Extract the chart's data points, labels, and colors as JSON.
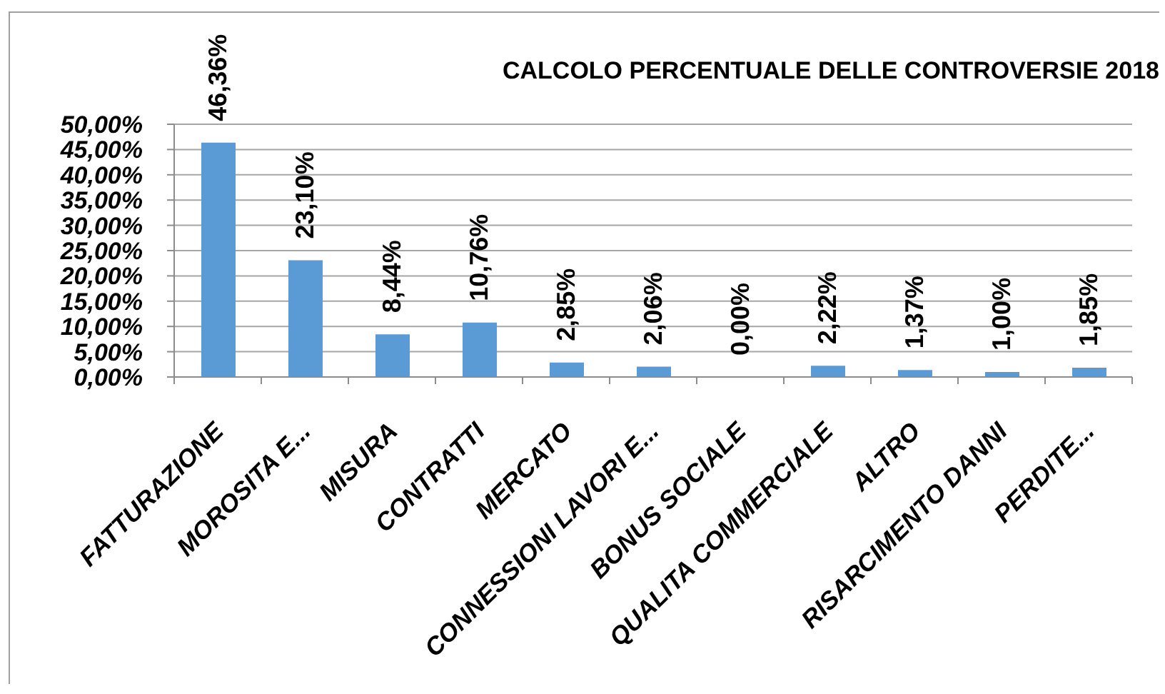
{
  "chart_data": {
    "type": "bar",
    "title": "CALCOLO PERCENTUALE DELLE CONTROVERSIE 2018",
    "categories": [
      "FATTURAZIONE",
      "MOROSITA E...",
      "MISURA",
      "CONTRATTI",
      "MERCATO",
      "CONNESSIONI LAVORI E...",
      "BONUS SOCIALE",
      "QUALITA COMMERCIALE",
      "ALTRO",
      "RISARCIMENTO DANNI",
      "PERDITE..."
    ],
    "values": [
      46.36,
      23.1,
      8.44,
      10.76,
      2.85,
      2.06,
      0.0,
      2.22,
      1.37,
      1.0,
      1.85
    ],
    "color": "#5b9bd5",
    "value_labels": [
      "46,36%",
      "23,10%",
      "8,44%",
      "10,76%",
      "2,85%",
      "2,06%",
      "0,00%",
      "2,22%",
      "1,37%",
      "1,00%",
      "1,85%"
    ],
    "ylim": [
      0,
      50
    ],
    "yticks": [
      {
        "value": 0,
        "label": "0,00%"
      },
      {
        "value": 5,
        "label": "5,00%"
      },
      {
        "value": 10,
        "label": "10,00%"
      },
      {
        "value": 15,
        "label": "15,00%"
      },
      {
        "value": 20,
        "label": "20,00%"
      },
      {
        "value": 25,
        "label": "25,00%"
      },
      {
        "value": 30,
        "label": "30,00%"
      },
      {
        "value": 35,
        "label": "35,00%"
      },
      {
        "value": 40,
        "label": "40,00%"
      },
      {
        "value": 45,
        "label": "45,00%"
      },
      {
        "value": 50,
        "label": "50,00%"
      }
    ],
    "grid": "y"
  }
}
